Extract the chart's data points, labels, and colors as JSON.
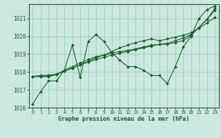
{
  "xlabel": "Graphe pression niveau de la mer (hPa)",
  "background_color": "#cce8e0",
  "grid_color": "#99ccbb",
  "line_color": "#1a5c2a",
  "xlim": [
    -0.5,
    23.5
  ],
  "ylim": [
    1016.0,
    1021.8
  ],
  "yticks": [
    1016,
    1017,
    1018,
    1019,
    1020,
    1021
  ],
  "xticks": [
    0,
    1,
    2,
    3,
    4,
    5,
    6,
    7,
    8,
    9,
    10,
    11,
    12,
    13,
    14,
    15,
    16,
    17,
    18,
    19,
    20,
    21,
    22,
    23
  ],
  "series": [
    [
      1016.2,
      1016.9,
      1017.5,
      1017.5,
      1018.1,
      1019.5,
      1017.7,
      1019.7,
      1020.1,
      1019.7,
      1019.1,
      1018.65,
      1018.3,
      1018.3,
      1018.1,
      1017.8,
      1017.8,
      1017.35,
      1018.3,
      1019.4,
      1020.0,
      1021.0,
      1021.5,
      1021.7
    ],
    [
      1017.75,
      1017.75,
      1017.75,
      1017.85,
      1018.05,
      1018.2,
      1018.4,
      1018.6,
      1018.8,
      1018.95,
      1019.15,
      1019.35,
      1019.5,
      1019.65,
      1019.75,
      1019.85,
      1019.75,
      1019.85,
      1019.95,
      1020.05,
      1020.2,
      1020.45,
      1020.75,
      1021.05
    ],
    [
      1017.75,
      1017.75,
      1017.75,
      1017.85,
      1018.1,
      1018.3,
      1018.5,
      1018.7,
      1018.85,
      1018.95,
      1019.05,
      1019.15,
      1019.2,
      1019.3,
      1019.4,
      1019.5,
      1019.55,
      1019.55,
      1019.65,
      1019.75,
      1020.05,
      1020.5,
      1020.95,
      1021.45
    ],
    [
      1017.75,
      1017.8,
      1017.82,
      1017.88,
      1018.05,
      1018.22,
      1018.4,
      1018.55,
      1018.7,
      1018.82,
      1018.95,
      1019.05,
      1019.15,
      1019.25,
      1019.35,
      1019.45,
      1019.55,
      1019.6,
      1019.75,
      1019.9,
      1020.1,
      1020.5,
      1020.95,
      1021.55
    ]
  ]
}
